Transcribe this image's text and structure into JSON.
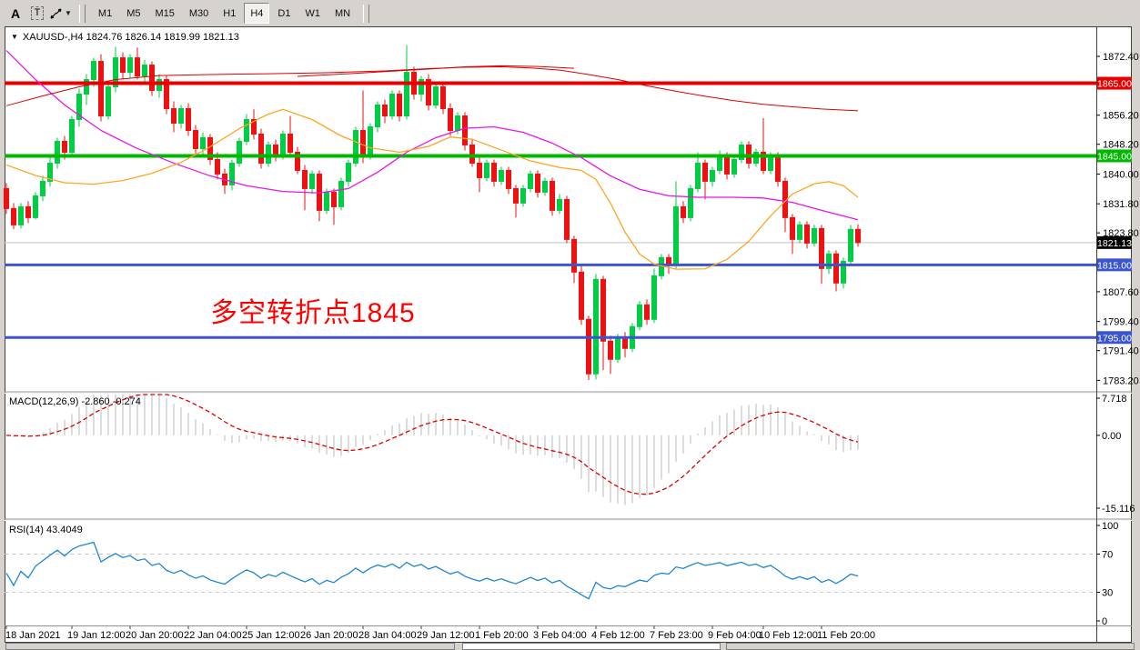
{
  "toolbar": {
    "a_label": "A",
    "t_label": "T",
    "timeframes": [
      "M1",
      "M5",
      "M15",
      "M30",
      "H1",
      "H4",
      "D1",
      "W1",
      "MN"
    ],
    "active_timeframe": "H4"
  },
  "chart": {
    "title_text": "XAUUSD-,H4  1824.76 1826.14 1819.99 1821.13"
  },
  "annotation": {
    "text": "多空转折点1845",
    "color": "#ff0000"
  },
  "indicators": {
    "macd": {
      "label_full": "MACD(12,26,9) -2.860 -0.274"
    },
    "rsi": {
      "label_full": "RSI(14) 43.4049"
    }
  },
  "chart_data": {
    "type": "candlestick",
    "symbol": "XAUUSD-",
    "timeframe": "H4",
    "last_ohlc": {
      "open": 1824.76,
      "high": 1826.14,
      "low": 1819.99,
      "close": 1821.13
    },
    "colors": {
      "bull": "#00cc44",
      "bear": "#ee1111"
    },
    "price_axis": {
      "max": 1880.4,
      "min": 1780.3,
      "ticks": [
        1872.4,
        1856.2,
        1848.2,
        1840.0,
        1831.8,
        1823.8,
        1807.6,
        1799.4,
        1791.4,
        1783.2
      ]
    },
    "hlines": [
      {
        "price": 1865.0,
        "label": "1865.00",
        "color": "#e60000",
        "width": 4
      },
      {
        "price": 1845.0,
        "label": "1845.00",
        "color": "#00b800",
        "width": 4
      },
      {
        "price": 1815.0,
        "label": "1815.00",
        "color": "#3b55ce",
        "width": 3
      },
      {
        "price": 1795.0,
        "label": "1795.00",
        "color": "#3b55ce",
        "width": 3
      }
    ],
    "current_price": {
      "price": 1821.13,
      "label": "1821.13",
      "line_color": "#c0c0c0",
      "badge_color": "#000000"
    },
    "x_ticks": [
      {
        "i": 0,
        "label": "18 Jan 2021"
      },
      {
        "i": 9,
        "label": "19 Jan 12:00"
      },
      {
        "i": 17,
        "label": "20 Jan 20:00"
      },
      {
        "i": 25,
        "label": "22 Jan 04:00"
      },
      {
        "i": 33,
        "label": "25 Jan 12:00"
      },
      {
        "i": 41,
        "label": "26 Jan 20:00"
      },
      {
        "i": 49,
        "label": "28 Jan 04:00"
      },
      {
        "i": 57,
        "label": "29 Jan 12:00"
      },
      {
        "i": 65,
        "label": "1 Feb 20:00"
      },
      {
        "i": 73,
        "label": "3 Feb 04:00"
      },
      {
        "i": 81,
        "label": "4 Feb 12:00"
      },
      {
        "i": 89,
        "label": "7 Feb 23:00"
      },
      {
        "i": 97,
        "label": "9 Feb 04:00"
      },
      {
        "i": 104,
        "label": "10 Feb 12:00"
      },
      {
        "i": 112,
        "label": "11 Feb 20:00"
      }
    ],
    "moving_averages": [
      {
        "name": "ma-magenta",
        "color": "#e816e8",
        "width": 1.3,
        "points": [
          [
            0,
            1874
          ],
          [
            4,
            1866
          ],
          [
            8,
            1859
          ],
          [
            13,
            1852
          ],
          [
            18,
            1847
          ],
          [
            23,
            1843
          ],
          [
            28,
            1839.5
          ],
          [
            33,
            1836.8
          ],
          [
            38,
            1835.2
          ],
          [
            43,
            1834.8
          ],
          [
            47,
            1836
          ],
          [
            51,
            1840.5
          ],
          [
            55,
            1846
          ],
          [
            59,
            1850
          ],
          [
            63,
            1852.6
          ],
          [
            67,
            1853
          ],
          [
            71,
            1851.5
          ],
          [
            75,
            1848.5
          ],
          [
            79,
            1844.5
          ],
          [
            83,
            1839.5
          ],
          [
            87,
            1835.8
          ],
          [
            91,
            1834
          ],
          [
            95,
            1833.6
          ],
          [
            100,
            1833.6
          ],
          [
            104,
            1833.4
          ],
          [
            108,
            1832.2
          ],
          [
            112,
            1830
          ],
          [
            117,
            1827.4
          ]
        ]
      },
      {
        "name": "ma-orange",
        "color": "#ffa520",
        "width": 1.3,
        "points": [
          [
            0,
            1842.5
          ],
          [
            4,
            1839.6
          ],
          [
            8,
            1837.6
          ],
          [
            12,
            1837.2
          ],
          [
            16,
            1838.2
          ],
          [
            20,
            1840.2
          ],
          [
            24,
            1843.2
          ],
          [
            28,
            1847.5
          ],
          [
            32,
            1852.5
          ],
          [
            36,
            1856.5
          ],
          [
            38,
            1857.8
          ],
          [
            42,
            1855
          ],
          [
            46,
            1850.5
          ],
          [
            50,
            1847.2
          ],
          [
            54,
            1846
          ],
          [
            58,
            1847.6
          ],
          [
            61,
            1850.2
          ],
          [
            64,
            1849.6
          ],
          [
            68,
            1846.6
          ],
          [
            72,
            1843.6
          ],
          [
            76,
            1841.8
          ],
          [
            79,
            1841
          ],
          [
            81,
            1838.5
          ],
          [
            83,
            1832
          ],
          [
            85,
            1824
          ],
          [
            87,
            1818
          ],
          [
            89,
            1815.2
          ],
          [
            92,
            1813.8
          ],
          [
            96,
            1813.9
          ],
          [
            99,
            1816.5
          ],
          [
            102,
            1821.5
          ],
          [
            105,
            1828.5
          ],
          [
            108,
            1834.5
          ],
          [
            111,
            1837.3
          ],
          [
            113,
            1837.9
          ],
          [
            115,
            1836.8
          ],
          [
            117,
            1833.6
          ]
        ]
      },
      {
        "name": "ma-red-slow",
        "color": "#dd0000",
        "width": 1,
        "points": [
          [
            0,
            1858.8
          ],
          [
            5,
            1861.5
          ],
          [
            10,
            1864
          ],
          [
            15,
            1866
          ],
          [
            21,
            1867.1
          ],
          [
            28,
            1867.4
          ],
          [
            36,
            1867.6
          ],
          [
            44,
            1867.9
          ],
          [
            52,
            1868.4
          ],
          [
            58,
            1869
          ],
          [
            63,
            1869.4
          ],
          [
            68,
            1869.5
          ],
          [
            72,
            1869.2
          ],
          [
            76,
            1868.6
          ],
          [
            80,
            1867.4
          ],
          [
            84,
            1866
          ],
          [
            88,
            1864.3
          ],
          [
            92,
            1862.8
          ],
          [
            96,
            1861.4
          ],
          [
            100,
            1860.2
          ],
          [
            104,
            1859.2
          ],
          [
            108,
            1858.5
          ],
          [
            112,
            1857.9
          ],
          [
            117,
            1857.4
          ]
        ]
      },
      {
        "name": "ma-red-slow2",
        "color": "#dd0000",
        "width": 1,
        "points": [
          [
            40,
            1866.9
          ],
          [
            46,
            1867.5
          ],
          [
            52,
            1868.2
          ],
          [
            58,
            1868.9
          ],
          [
            63,
            1869.5
          ],
          [
            68,
            1869.8
          ],
          [
            73,
            1869.6
          ],
          [
            78,
            1869.1
          ]
        ]
      }
    ],
    "indicators": {
      "macd": {
        "name": "MACD",
        "params": [
          12,
          26,
          9
        ],
        "value": -2.86,
        "signal_value": -0.274,
        "histogram_color": "#b8b8b8",
        "signal_color": "#dd0000",
        "signal_style": "dashed",
        "axis_ticks": [
          {
            "v": 7.718,
            "label": "7.718"
          },
          {
            "v": 0,
            "label": "0.00"
          },
          {
            "v": -15.116,
            "label": "-15.116"
          }
        ]
      },
      "rsi": {
        "name": "RSI",
        "period": 14,
        "value": 43.4049,
        "color": "#1c86d1",
        "levels": [
          70,
          30
        ],
        "axis_ticks": [
          100,
          70,
          30,
          0
        ]
      }
    },
    "candles": [
      [
        1836,
        1837.5,
        1829,
        1830.5
      ],
      [
        1830.5,
        1832,
        1824.8,
        1826
      ],
      [
        1826,
        1832,
        1825,
        1831
      ],
      [
        1831,
        1832.5,
        1826.5,
        1828
      ],
      [
        1828,
        1835,
        1827.5,
        1834
      ],
      [
        1834,
        1839.5,
        1832.5,
        1838
      ],
      [
        1838,
        1844.5,
        1836.5,
        1843
      ],
      [
        1843,
        1850,
        1841.5,
        1849
      ],
      [
        1849,
        1850.5,
        1844,
        1846
      ],
      [
        1846,
        1856,
        1845,
        1855
      ],
      [
        1855,
        1863.5,
        1853,
        1862
      ],
      [
        1862,
        1867.5,
        1859,
        1866
      ],
      [
        1866,
        1872,
        1864,
        1871
      ],
      [
        1871,
        1873,
        1854.5,
        1856
      ],
      [
        1856,
        1865,
        1855,
        1864
      ],
      [
        1864,
        1875,
        1862.5,
        1872
      ],
      [
        1872,
        1873.5,
        1866,
        1868
      ],
      [
        1868,
        1873,
        1866.5,
        1872
      ],
      [
        1872,
        1874.8,
        1866,
        1867
      ],
      [
        1867,
        1871.5,
        1865,
        1870
      ],
      [
        1870,
        1871,
        1861.5,
        1863
      ],
      [
        1863,
        1867.5,
        1861,
        1866
      ],
      [
        1866,
        1867,
        1856.5,
        1858
      ],
      [
        1858,
        1860,
        1851.5,
        1854
      ],
      [
        1854,
        1859,
        1852.5,
        1858
      ],
      [
        1858,
        1859.5,
        1850.5,
        1852
      ],
      [
        1852,
        1853.5,
        1845.5,
        1847
      ],
      [
        1847,
        1851.5,
        1845.5,
        1850
      ],
      [
        1850,
        1851,
        1842.5,
        1844
      ],
      [
        1844,
        1846,
        1838.5,
        1840
      ],
      [
        1840,
        1841.5,
        1834.5,
        1837
      ],
      [
        1837,
        1844,
        1835.5,
        1843
      ],
      [
        1843,
        1850,
        1842,
        1849
      ],
      [
        1849,
        1856.5,
        1848,
        1855
      ],
      [
        1855,
        1857.8,
        1849.5,
        1851
      ],
      [
        1851,
        1852.5,
        1841.5,
        1843
      ],
      [
        1843,
        1849,
        1842,
        1848
      ],
      [
        1848,
        1849.5,
        1843.5,
        1845
      ],
      [
        1845,
        1852,
        1844,
        1851
      ],
      [
        1851,
        1856,
        1845,
        1846
      ],
      [
        1846,
        1847.5,
        1840,
        1841
      ],
      [
        1841,
        1842.5,
        1830,
        1836
      ],
      [
        1836,
        1841,
        1834.5,
        1840
      ],
      [
        1840,
        1841,
        1827,
        1830
      ],
      [
        1830,
        1836,
        1829,
        1835
      ],
      [
        1835,
        1836,
        1826,
        1831
      ],
      [
        1831,
        1839,
        1830,
        1838
      ],
      [
        1838,
        1844,
        1836.5,
        1843
      ],
      [
        1843,
        1853,
        1842,
        1852
      ],
      [
        1852,
        1863,
        1843,
        1845
      ],
      [
        1845,
        1854,
        1844,
        1853
      ],
      [
        1853,
        1860,
        1851.5,
        1859
      ],
      [
        1859,
        1860.5,
        1854,
        1856
      ],
      [
        1856,
        1863,
        1855,
        1862
      ],
      [
        1862,
        1863,
        1854.5,
        1856
      ],
      [
        1856,
        1875.5,
        1855,
        1868
      ],
      [
        1868,
        1869.5,
        1860.5,
        1862
      ],
      [
        1862,
        1867,
        1860,
        1866
      ],
      [
        1866,
        1867.5,
        1857.5,
        1859
      ],
      [
        1859,
        1865,
        1858,
        1864
      ],
      [
        1864,
        1865,
        1856.5,
        1858
      ],
      [
        1858,
        1859.5,
        1850.5,
        1852
      ],
      [
        1852,
        1857,
        1851,
        1856
      ],
      [
        1856,
        1857,
        1846.5,
        1848
      ],
      [
        1848,
        1849.5,
        1842,
        1843
      ],
      [
        1843,
        1844.5,
        1835,
        1839
      ],
      [
        1839,
        1844,
        1838,
        1843
      ],
      [
        1843,
        1844,
        1836.5,
        1838
      ],
      [
        1838,
        1842,
        1837,
        1841
      ],
      [
        1841,
        1842,
        1834.5,
        1836
      ],
      [
        1836,
        1837,
        1828,
        1832
      ],
      [
        1832,
        1837,
        1831,
        1836
      ],
      [
        1836,
        1841,
        1835,
        1840
      ],
      [
        1840,
        1841,
        1833.5,
        1835
      ],
      [
        1835,
        1839,
        1834,
        1838
      ],
      [
        1838,
        1839,
        1828.5,
        1830
      ],
      [
        1830,
        1834.5,
        1829,
        1833
      ],
      [
        1833,
        1834,
        1821,
        1822
      ],
      [
        1822,
        1823,
        1810,
        1813
      ],
      [
        1813,
        1815,
        1798.5,
        1800
      ],
      [
        1800,
        1801,
        1783.3,
        1785
      ],
      [
        1785,
        1812.5,
        1783.5,
        1811
      ],
      [
        1811,
        1812,
        1786,
        1794
      ],
      [
        1794,
        1795.5,
        1785,
        1789
      ],
      [
        1789,
        1796,
        1788,
        1795
      ],
      [
        1795,
        1796.5,
        1789.5,
        1792
      ],
      [
        1792,
        1799,
        1791,
        1798
      ],
      [
        1798,
        1805,
        1797,
        1804
      ],
      [
        1804,
        1805.5,
        1798.5,
        1800
      ],
      [
        1800,
        1814,
        1799,
        1812
      ],
      [
        1812,
        1818,
        1811,
        1817
      ],
      [
        1817,
        1818,
        1812.5,
        1815
      ],
      [
        1815,
        1838,
        1814,
        1831
      ],
      [
        1831,
        1832.5,
        1826.5,
        1828
      ],
      [
        1828,
        1837,
        1827,
        1836
      ],
      [
        1836,
        1846,
        1835,
        1843
      ],
      [
        1843,
        1844,
        1833,
        1838
      ],
      [
        1838,
        1842,
        1836.5,
        1841
      ],
      [
        1841,
        1846.5,
        1840,
        1845
      ],
      [
        1845,
        1846,
        1838.5,
        1840
      ],
      [
        1840,
        1845,
        1839,
        1844
      ],
      [
        1844,
        1849,
        1843,
        1848
      ],
      [
        1848,
        1849,
        1841.5,
        1843
      ],
      [
        1843,
        1847,
        1842,
        1846
      ],
      [
        1846,
        1855.4,
        1840,
        1841
      ],
      [
        1841,
        1846,
        1840,
        1845
      ],
      [
        1845,
        1846,
        1836.5,
        1838
      ],
      [
        1838,
        1839,
        1824,
        1828
      ],
      [
        1828,
        1829,
        1818,
        1822
      ],
      [
        1822,
        1827,
        1821,
        1826
      ],
      [
        1826,
        1827,
        1819.5,
        1821
      ],
      [
        1821,
        1826,
        1820,
        1825
      ],
      [
        1825,
        1826,
        1809.8,
        1814
      ],
      [
        1814,
        1819,
        1812.5,
        1818
      ],
      [
        1818,
        1819,
        1807.7,
        1810
      ],
      [
        1810,
        1817,
        1808.5,
        1816
      ],
      [
        1816,
        1826,
        1815,
        1824.76
      ],
      [
        1824.76,
        1826.14,
        1819.99,
        1821.13
      ]
    ]
  }
}
